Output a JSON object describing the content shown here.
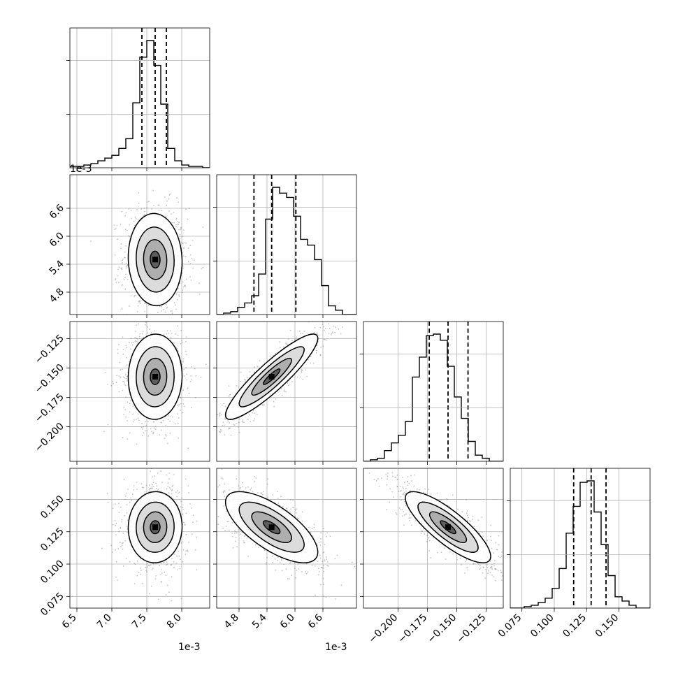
{
  "chart_data": {
    "type": "corner",
    "grid": true,
    "parameters": [
      {
        "range": [
          6.4,
          8.4
        ],
        "ticks": [
          "6.5",
          "7.0",
          "7.5",
          "8.0"
        ],
        "tick_values": [
          6.5,
          7.0,
          7.5,
          8.0
        ],
        "offset": "1e-3",
        "hist": [
          0.01,
          0.01,
          0.02,
          0.03,
          0.05,
          0.07,
          0.09,
          0.14,
          0.21,
          0.47,
          0.8,
          0.92,
          0.74,
          0.46,
          0.14,
          0.05,
          0.02,
          0.01,
          0.01,
          0.0
        ],
        "quantiles": [
          7.43,
          7.62,
          7.78
        ]
      },
      {
        "range": [
          4.32,
          7.32
        ],
        "ticks": [
          "4.8",
          "5.4",
          "6.0",
          "6.6"
        ],
        "tick_values": [
          4.8,
          5.4,
          6.0,
          6.6
        ],
        "offset": "1e-3",
        "hist": [
          0.0,
          0.01,
          0.02,
          0.05,
          0.08,
          0.13,
          0.28,
          0.66,
          0.88,
          0.84,
          0.81,
          0.68,
          0.52,
          0.48,
          0.38,
          0.2,
          0.06,
          0.03,
          0.0,
          0.0
        ],
        "quantiles": [
          5.12,
          5.5,
          6.02
        ]
      },
      {
        "range": [
          -0.2295,
          -0.1105
        ],
        "ticks": [
          "−0.200",
          "−0.175",
          "−0.150",
          "−0.125"
        ],
        "tick_values": [
          -0.2,
          -0.175,
          -0.15,
          -0.125
        ],
        "hist": [
          0.0,
          0.01,
          0.02,
          0.07,
          0.12,
          0.17,
          0.26,
          0.55,
          0.68,
          0.82,
          0.83,
          0.79,
          0.62,
          0.42,
          0.28,
          0.13,
          0.04,
          0.02,
          0.0,
          0.0
        ],
        "quantiles": [
          -0.1735,
          -0.1575,
          -0.1405
        ]
      },
      {
        "range": [
          0.066,
          0.174
        ],
        "ticks": [
          "0.075",
          "0.100",
          "0.125",
          "0.150"
        ],
        "tick_values": [
          0.075,
          0.1,
          0.125,
          0.15
        ],
        "hist": [
          0.0,
          0.0,
          0.01,
          0.02,
          0.04,
          0.07,
          0.14,
          0.28,
          0.53,
          0.72,
          0.89,
          0.9,
          0.68,
          0.45,
          0.23,
          0.08,
          0.05,
          0.02,
          0.0,
          0.0
        ],
        "quantiles": [
          0.115,
          0.1285,
          0.14
        ]
      }
    ]
  }
}
